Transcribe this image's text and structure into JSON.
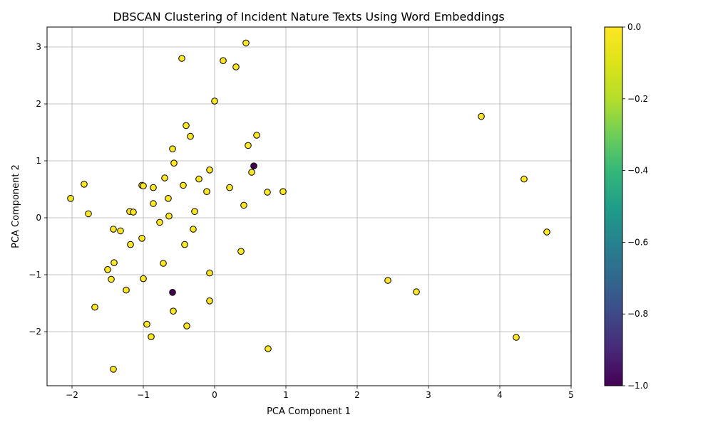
{
  "chart_data": {
    "type": "scatter",
    "title": "DBSCAN Clustering of Incident Nature Texts Using Word Embeddings",
    "xlabel": "PCA Component 1",
    "ylabel": "PCA Component 2",
    "xlim": [
      -2.35,
      5.0
    ],
    "ylim": [
      -2.95,
      3.35
    ],
    "xticks": [
      -2,
      -1,
      0,
      1,
      2,
      3,
      4,
      5
    ],
    "xtick_labels": [
      "−2",
      "−1",
      "0",
      "1",
      "2",
      "3",
      "4",
      "5"
    ],
    "yticks": [
      -2,
      -1,
      0,
      1,
      2,
      3
    ],
    "ytick_labels": [
      "−2",
      "−1",
      "0",
      "1",
      "2",
      "3"
    ],
    "grid": true,
    "colormap": "viridis",
    "colorbar": {
      "range": [
        -1.0,
        0.0
      ],
      "ticks": [
        0.0,
        -0.2,
        -0.4,
        -0.6,
        -0.8,
        -1.0
      ],
      "tick_labels": [
        "0.0",
        "−0.2",
        "−0.4",
        "−0.6",
        "−0.8",
        "−1.0"
      ]
    },
    "colors": {
      "cluster_0": "#fde725",
      "noise": "#440154",
      "edge": "#000000",
      "grid": "#b0b0b0"
    },
    "points": [
      {
        "x": 0.44,
        "y": 3.07,
        "label": 0
      },
      {
        "x": -0.46,
        "y": 2.8,
        "label": 0
      },
      {
        "x": 0.12,
        "y": 2.76,
        "label": 0
      },
      {
        "x": 0.3,
        "y": 2.65,
        "label": 0
      },
      {
        "x": 0.0,
        "y": 2.05,
        "label": 0
      },
      {
        "x": -0.4,
        "y": 1.62,
        "label": 0
      },
      {
        "x": -0.34,
        "y": 1.43,
        "label": 0
      },
      {
        "x": 0.59,
        "y": 1.45,
        "label": 0
      },
      {
        "x": 0.47,
        "y": 1.27,
        "label": 0
      },
      {
        "x": -0.59,
        "y": 1.21,
        "label": 0
      },
      {
        "x": -0.57,
        "y": 0.96,
        "label": 0
      },
      {
        "x": 0.55,
        "y": 0.91,
        "label": -1
      },
      {
        "x": -0.07,
        "y": 0.84,
        "label": 0
      },
      {
        "x": 0.52,
        "y": 0.8,
        "label": 0
      },
      {
        "x": -0.7,
        "y": 0.7,
        "label": 0
      },
      {
        "x": -0.22,
        "y": 0.68,
        "label": 0
      },
      {
        "x": -1.02,
        "y": 0.57,
        "label": 0
      },
      {
        "x": -1.0,
        "y": 0.56,
        "label": 0
      },
      {
        "x": -0.44,
        "y": 0.57,
        "label": 0
      },
      {
        "x": -0.86,
        "y": 0.53,
        "label": 0
      },
      {
        "x": 0.21,
        "y": 0.53,
        "label": 0
      },
      {
        "x": -0.11,
        "y": 0.46,
        "label": 0
      },
      {
        "x": 0.74,
        "y": 0.45,
        "label": 0
      },
      {
        "x": 0.96,
        "y": 0.46,
        "label": 0
      },
      {
        "x": -1.83,
        "y": 0.59,
        "label": 0
      },
      {
        "x": -2.02,
        "y": 0.34,
        "label": 0
      },
      {
        "x": -0.65,
        "y": 0.34,
        "label": 0
      },
      {
        "x": -0.86,
        "y": 0.25,
        "label": 0
      },
      {
        "x": 0.41,
        "y": 0.22,
        "label": 0
      },
      {
        "x": -1.19,
        "y": 0.11,
        "label": 0
      },
      {
        "x": -1.14,
        "y": 0.1,
        "label": 0
      },
      {
        "x": -0.28,
        "y": 0.11,
        "label": 0
      },
      {
        "x": -1.77,
        "y": 0.07,
        "label": 0
      },
      {
        "x": -0.64,
        "y": 0.03,
        "label": 0
      },
      {
        "x": -0.77,
        "y": -0.08,
        "label": 0
      },
      {
        "x": -1.42,
        "y": -0.2,
        "label": 0
      },
      {
        "x": -1.32,
        "y": -0.23,
        "label": 0
      },
      {
        "x": -0.3,
        "y": -0.2,
        "label": 0
      },
      {
        "x": -1.02,
        "y": -0.36,
        "label": 0
      },
      {
        "x": -1.18,
        "y": -0.47,
        "label": 0
      },
      {
        "x": -0.42,
        "y": -0.47,
        "label": 0
      },
      {
        "x": 0.37,
        "y": -0.59,
        "label": 0
      },
      {
        "x": -1.41,
        "y": -0.79,
        "label": 0
      },
      {
        "x": -0.72,
        "y": -0.8,
        "label": 0
      },
      {
        "x": -1.5,
        "y": -0.91,
        "label": 0
      },
      {
        "x": -0.07,
        "y": -0.97,
        "label": 0
      },
      {
        "x": -1.45,
        "y": -1.08,
        "label": 0
      },
      {
        "x": -1.0,
        "y": -1.07,
        "label": 0
      },
      {
        "x": -1.24,
        "y": -1.27,
        "label": 0
      },
      {
        "x": -0.59,
        "y": -1.31,
        "label": -1
      },
      {
        "x": -0.07,
        "y": -1.46,
        "label": 0
      },
      {
        "x": -1.68,
        "y": -1.57,
        "label": 0
      },
      {
        "x": -0.58,
        "y": -1.64,
        "label": 0
      },
      {
        "x": -0.95,
        "y": -1.87,
        "label": 0
      },
      {
        "x": -0.39,
        "y": -1.9,
        "label": 0
      },
      {
        "x": -0.89,
        "y": -2.09,
        "label": 0
      },
      {
        "x": 0.75,
        "y": -2.3,
        "label": 0
      },
      {
        "x": -1.42,
        "y": -2.66,
        "label": 0
      },
      {
        "x": 3.74,
        "y": 1.78,
        "label": 0
      },
      {
        "x": 4.34,
        "y": 0.68,
        "label": 0
      },
      {
        "x": 4.66,
        "y": -0.25,
        "label": 0
      },
      {
        "x": 2.43,
        "y": -1.1,
        "label": 0
      },
      {
        "x": 2.83,
        "y": -1.3,
        "label": 0
      },
      {
        "x": 4.23,
        "y": -2.1,
        "label": 0
      }
    ]
  }
}
